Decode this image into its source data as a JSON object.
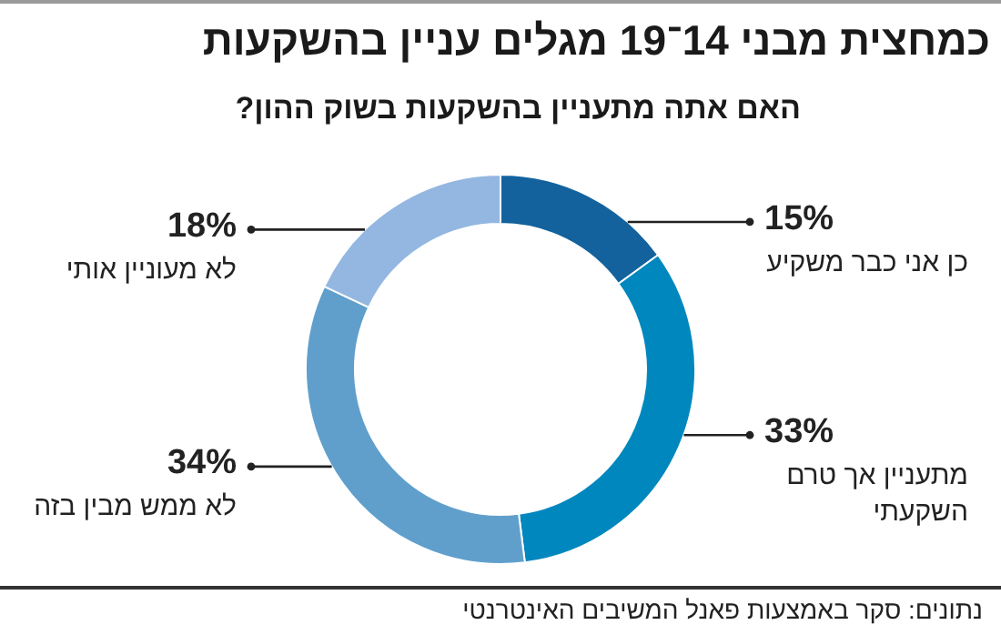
{
  "chart_data": {
    "type": "donut",
    "title": "כמחצית מבני 14־19 מגלים עניין בהשקעות",
    "subtitle": "האם אתה מתעניין בהשקעות בשוק ההון?",
    "categories": [
      "כן אני כבר משקיע",
      "מתעניין אך טרם השקעתי",
      "לא ממש מבין בזה",
      "לא מעוניין אותי"
    ],
    "values": [
      15,
      33,
      34,
      18
    ],
    "value_labels": [
      "15%",
      "33%",
      "34%",
      "18%"
    ],
    "colors": [
      "#13629e",
      "#0087be",
      "#609fcc",
      "#93b7e1"
    ],
    "legend": false,
    "annotations": [
      "נתונים: סקר באמצעות פאנל המשיבים האינטרנטי"
    ]
  }
}
